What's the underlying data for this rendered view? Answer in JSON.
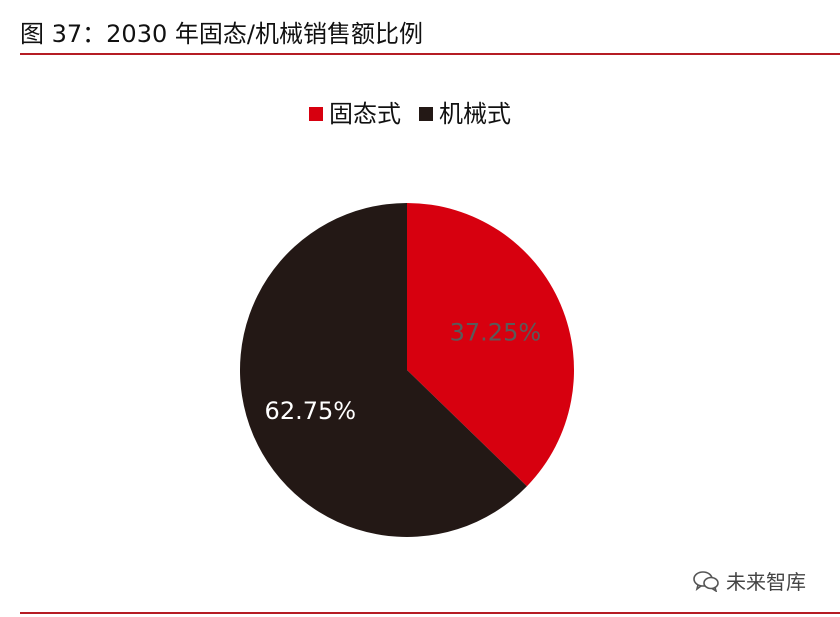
{
  "figure": {
    "title": "图 37：2030 年固态/机械销售额比例"
  },
  "watermark": {
    "text": "未来智库",
    "icon": "wechat-icon"
  },
  "colors": {
    "rule": "#b51c24",
    "solid_state": "#d7000f",
    "mechanical": "#231815"
  },
  "chart_data": {
    "type": "pie",
    "title": "",
    "legend": "top-center",
    "series": [
      {
        "name": "固态式",
        "value": 37.25,
        "label": "37.25%",
        "color": "#d7000f",
        "label_color": "#5a5a5a"
      },
      {
        "name": "机械式",
        "value": 62.75,
        "label": "62.75%",
        "color": "#231815",
        "label_color": "#ffffff"
      }
    ]
  }
}
